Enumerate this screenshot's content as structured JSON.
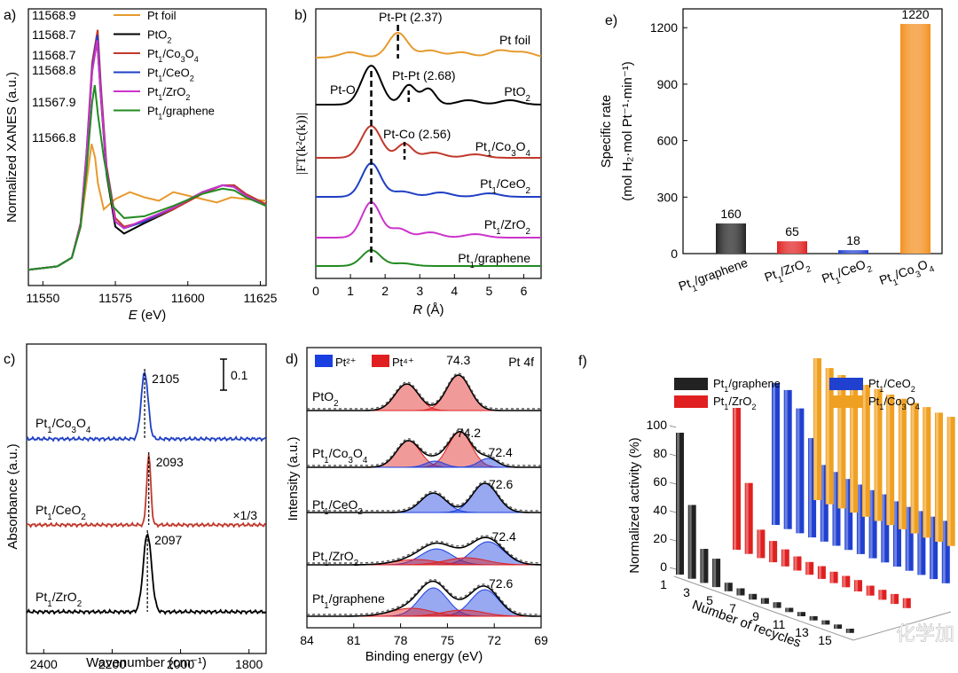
{
  "chart_data": [
    {
      "panel": "a)",
      "type": "line",
      "xlabel_var": "E",
      "xlabel_unit": " (eV)",
      "ylabel": "Normalized XANES (a.u.)",
      "xlim": [
        11545,
        11627
      ],
      "xticks": [
        11550,
        11575,
        11600,
        11625
      ],
      "series": [
        {
          "name": "Pt foil",
          "color": "#e69a2e",
          "edge_label": "11566.8",
          "peak": 0.78,
          "points": [
            [
              11545,
              0.05
            ],
            [
              11555,
              0.07
            ],
            [
              11560,
              0.12
            ],
            [
              11563,
              0.3
            ],
            [
              11565,
              0.55
            ],
            [
              11566.8,
              0.78
            ],
            [
              11568,
              0.7
            ],
            [
              11569,
              0.55
            ],
            [
              11571,
              0.4
            ],
            [
              11575,
              0.46
            ],
            [
              11580,
              0.5
            ],
            [
              11585,
              0.47
            ],
            [
              11590,
              0.45
            ],
            [
              11595,
              0.5
            ],
            [
              11600,
              0.48
            ],
            [
              11605,
              0.46
            ],
            [
              11610,
              0.44
            ],
            [
              11615,
              0.47
            ],
            [
              11620,
              0.46
            ],
            [
              11627,
              0.45
            ]
          ]
        },
        {
          "name": "PtO2",
          "color": "#000000",
          "edge_label": "11568.7",
          "peak": 1.38,
          "points": [
            [
              11545,
              0.05
            ],
            [
              11555,
              0.07
            ],
            [
              11560,
              0.12
            ],
            [
              11563,
              0.3
            ],
            [
              11565,
              0.7
            ],
            [
              11567,
              1.2
            ],
            [
              11568.7,
              1.38
            ],
            [
              11570,
              1.05
            ],
            [
              11572,
              0.6
            ],
            [
              11575,
              0.3
            ],
            [
              11578,
              0.26
            ],
            [
              11585,
              0.32
            ],
            [
              11595,
              0.4
            ],
            [
              11605,
              0.5
            ],
            [
              11612,
              0.54
            ],
            [
              11616,
              0.53
            ],
            [
              11620,
              0.48
            ],
            [
              11627,
              0.42
            ]
          ]
        },
        {
          "name": "Pt1/Co3O4",
          "color": "#c0392b",
          "edge_label": "11568.9",
          "peak": 1.44,
          "points": [
            [
              11545,
              0.05
            ],
            [
              11555,
              0.07
            ],
            [
              11560,
              0.12
            ],
            [
              11563,
              0.32
            ],
            [
              11565,
              0.72
            ],
            [
              11567,
              1.25
            ],
            [
              11568.9,
              1.44
            ],
            [
              11570,
              1.12
            ],
            [
              11572,
              0.65
            ],
            [
              11575,
              0.35
            ],
            [
              11578,
              0.3
            ],
            [
              11585,
              0.33
            ],
            [
              11595,
              0.4
            ],
            [
              11605,
              0.49
            ],
            [
              11612,
              0.54
            ],
            [
              11616,
              0.54
            ],
            [
              11620,
              0.49
            ],
            [
              11627,
              0.43
            ]
          ]
        },
        {
          "name": "Pt1/CeO2",
          "color": "#1f3fc4",
          "edge_label": "11568.8",
          "peak": 1.41,
          "points": [
            [
              11545,
              0.05
            ],
            [
              11555,
              0.07
            ],
            [
              11560,
              0.12
            ],
            [
              11563,
              0.31
            ],
            [
              11565,
              0.71
            ],
            [
              11567,
              1.22
            ],
            [
              11568.8,
              1.41
            ],
            [
              11570,
              1.08
            ],
            [
              11572,
              0.63
            ],
            [
              11575,
              0.33
            ],
            [
              11578,
              0.29
            ],
            [
              11585,
              0.33
            ],
            [
              11595,
              0.41
            ],
            [
              11605,
              0.5
            ],
            [
              11612,
              0.54
            ],
            [
              11616,
              0.53
            ],
            [
              11620,
              0.48
            ],
            [
              11627,
              0.42
            ]
          ]
        },
        {
          "name": "Pt1/ZrO2",
          "color": "#cc33cc",
          "edge_label": "11568.7",
          "peak": 1.38,
          "points": [
            [
              11545,
              0.05
            ],
            [
              11555,
              0.07
            ],
            [
              11560,
              0.12
            ],
            [
              11563,
              0.31
            ],
            [
              11565,
              0.7
            ],
            [
              11567,
              1.2
            ],
            [
              11568.7,
              1.38
            ],
            [
              11570,
              1.06
            ],
            [
              11572,
              0.62
            ],
            [
              11575,
              0.33
            ],
            [
              11578,
              0.29
            ],
            [
              11585,
              0.34
            ],
            [
              11595,
              0.41
            ],
            [
              11605,
              0.5
            ],
            [
              11612,
              0.54
            ],
            [
              11616,
              0.53
            ],
            [
              11620,
              0.48
            ],
            [
              11627,
              0.42
            ]
          ]
        },
        {
          "name": "Pt1/graphene",
          "color": "#228b22",
          "edge_label": "11567.9",
          "peak": 1.12,
          "points": [
            [
              11545,
              0.05
            ],
            [
              11555,
              0.07
            ],
            [
              11560,
              0.12
            ],
            [
              11563,
              0.3
            ],
            [
              11565,
              0.62
            ],
            [
              11567,
              1.02
            ],
            [
              11567.9,
              1.12
            ],
            [
              11569,
              0.95
            ],
            [
              11571,
              0.7
            ],
            [
              11574,
              0.42
            ],
            [
              11578,
              0.35
            ],
            [
              11585,
              0.36
            ],
            [
              11595,
              0.42
            ],
            [
              11605,
              0.49
            ],
            [
              11612,
              0.52
            ],
            [
              11616,
              0.51
            ],
            [
              11620,
              0.47
            ],
            [
              11627,
              0.42
            ]
          ]
        }
      ]
    },
    {
      "panel": "b)",
      "type": "line",
      "xlabel_var": "R",
      "xlabel_unit": " (Å)",
      "ylabel": "|FT(k²c(k))|",
      "xlim": [
        0,
        6.5
      ],
      "xticks": [
        0,
        1,
        2,
        3,
        4,
        5,
        6
      ],
      "series": [
        {
          "name": "Pt foil",
          "color": "#e69a2e"
        },
        {
          "name": "PtO2",
          "color": "#000000"
        },
        {
          "name": "Pt1/Co3O4",
          "color": "#c0392b"
        },
        {
          "name": "Pt1/CeO2",
          "color": "#1f3fc4"
        },
        {
          "name": "Pt1/ZrO2",
          "color": "#cc33cc"
        },
        {
          "name": "Pt1/graphene",
          "color": "#228b22"
        }
      ],
      "annotations": [
        {
          "text": "Pt-Pt (2.37)",
          "x": 2.37
        },
        {
          "text": "Pt-O",
          "x": 1.6
        },
        {
          "text": "Pt-Pt (2.68)",
          "x": 2.68
        },
        {
          "text": "Pt-Co (2.56)",
          "x": 2.56
        }
      ]
    },
    {
      "panel": "c)",
      "type": "line",
      "xlabel": "Wavenumber (cm⁻¹)",
      "ylabel": "Absorbance (a.u.)",
      "xlim": [
        2450,
        1750
      ],
      "xticks": [
        2400,
        2200,
        2000,
        1800
      ],
      "scale_bar": "0.1",
      "series": [
        {
          "name": "Pt1/Co3O4",
          "color": "#1f3fc4",
          "peak": 2105
        },
        {
          "name": "Pt1/CeO2",
          "color": "#c0392b",
          "peak": 2093,
          "multiplier": "×1/3"
        },
        {
          "name": "Pt1/ZrO2",
          "color": "#000000",
          "peak": 2097
        }
      ]
    },
    {
      "panel": "d)",
      "type": "line",
      "xlabel": "Binding energy (eV)",
      "ylabel": "Intensity (a.u.)",
      "xlim": [
        84,
        69
      ],
      "xticks": [
        84,
        81,
        78,
        75,
        72,
        69
      ],
      "legend": [
        {
          "name": "Pt²⁺",
          "color": "#1a3fe0"
        },
        {
          "name": "Pt⁴⁺",
          "color": "#e02020"
        }
      ],
      "corner_label": "Pt 4f",
      "series": [
        {
          "name": "PtO2",
          "label": "74.3"
        },
        {
          "name": "Pt1/Co3O4",
          "label": "74.2",
          "label2": "72.4"
        },
        {
          "name": "Pt1/CeO2",
          "label": "72.6"
        },
        {
          "name": "Pt1/ZrO2",
          "label": "72.4"
        },
        {
          "name": "Pt1/graphene",
          "label": "72.6"
        }
      ]
    },
    {
      "panel": "e)",
      "type": "bar",
      "ylabel": "Specific rate",
      "ylabel_unit": "(mol H₂·mol Pt⁻¹·min⁻¹)",
      "ylim": [
        0,
        1300
      ],
      "yticks": [
        0,
        300,
        600,
        900,
        1200
      ],
      "categories": [
        "Pt1/graphene",
        "Pt1/ZrO2",
        "Pt1/CeO2",
        "Pt1/Co3O4"
      ],
      "values": [
        160,
        65,
        18,
        1220
      ],
      "value_labels": [
        "160",
        "65",
        "18",
        "1220"
      ],
      "colors": [
        "#222222",
        "#e02020",
        "#2040d0",
        "#f39020"
      ]
    },
    {
      "panel": "f)",
      "type": "bar",
      "xlabel": "Number of recycles",
      "ylabel": "Normalized activity (%)",
      "ylim": [
        0,
        100
      ],
      "yticks": [
        0,
        20,
        40,
        60,
        80,
        100
      ],
      "x_ticks": [
        "1",
        "3",
        "5",
        "7",
        "9",
        "11",
        "13",
        "15"
      ],
      "series": [
        {
          "name": "Pt1/graphene",
          "color": "#222222",
          "values": [
            100,
            52,
            24,
            20,
            6,
            5,
            4,
            4,
            4,
            3,
            3,
            3,
            3,
            3,
            3
          ]
        },
        {
          "name": "Pt1/ZrO2",
          "color": "#e02020",
          "values": [
            100,
            50,
            20,
            15,
            12,
            10,
            9,
            9,
            8,
            8,
            8,
            7,
            7,
            7,
            7
          ]
        },
        {
          "name": "Pt1/CeO2",
          "color": "#2040d0",
          "values": [
            100,
            98,
            88,
            70,
            54,
            52,
            50,
            49,
            48,
            48,
            46,
            45,
            45,
            44,
            44
          ]
        },
        {
          "name": "Pt1/Co3O4",
          "color": "#f0a020",
          "values": [
            100,
            96,
            94,
            94,
            93,
            93,
            92,
            92,
            92,
            92,
            91,
            91,
            91,
            91,
            91
          ]
        }
      ]
    }
  ],
  "watermark": "化学加"
}
